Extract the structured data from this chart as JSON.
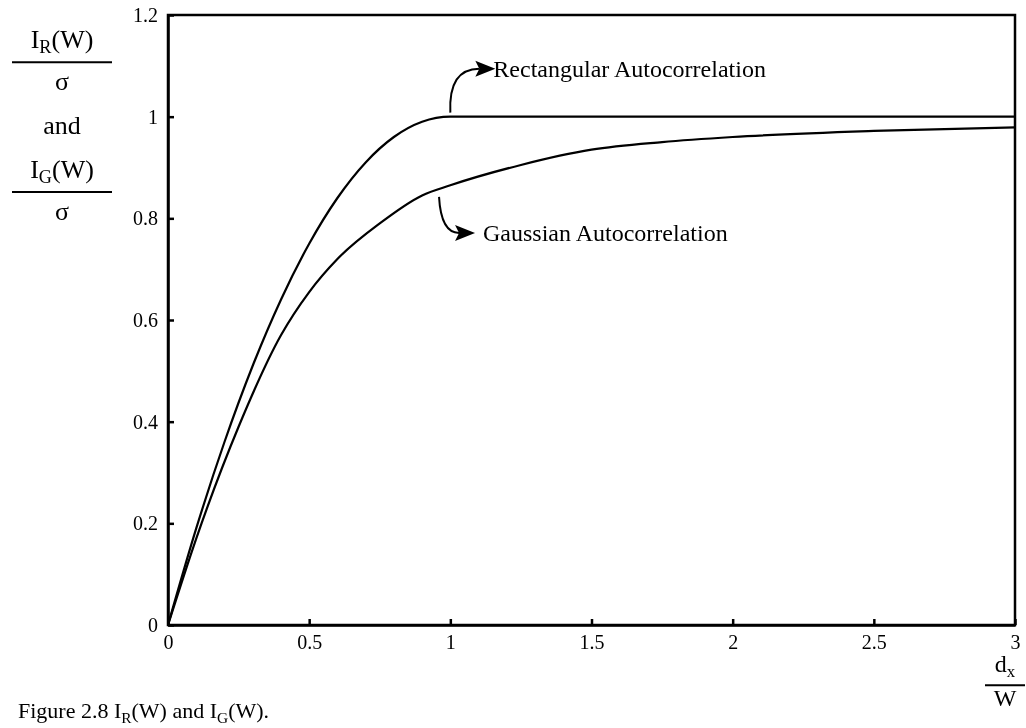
{
  "chart_data": {
    "type": "line",
    "xlabel": "d$_{x}$\nW",
    "ylabel": "I$_{R}$(W)\nσ\nand\nI$_{G}$(W)\nσ",
    "xlim": [
      0,
      3
    ],
    "ylim": [
      0,
      1.2
    ],
    "xticks": [
      0,
      0.5,
      1,
      1.5,
      2,
      2.5,
      3
    ],
    "yticks": [
      0,
      0.2,
      0.4,
      0.6,
      0.8,
      1,
      1.2
    ],
    "series": [
      {
        "color": "#000000",
        "x": [
          0,
          0.1,
          0.2,
          0.3,
          0.4,
          0.5,
          0.6,
          0.7,
          0.8,
          0.9,
          1,
          1.5,
          2,
          2.5,
          3
        ],
        "values": [
          0,
          0.19,
          0.36,
          0.51,
          0.64,
          0.75,
          0.84,
          0.91,
          0.96,
          0.99,
          1,
          1,
          1,
          1,
          1
        ]
      },
      {
        "color": "#000000",
        "x": [
          0,
          0.1,
          0.25,
          0.4,
          0.5,
          0.6,
          0.75,
          0.9,
          1,
          1.25,
          1.5,
          1.75,
          2,
          2.5,
          3
        ],
        "values": [
          0,
          0.17,
          0.39,
          0.57,
          0.655,
          0.72,
          0.79,
          0.845,
          0.865,
          0.905,
          0.935,
          0.95,
          0.96,
          0.972,
          0.979
        ]
      }
    ],
    "annotations": [
      {
        "text": "Rectangular Autocorrelation",
        "x": 1,
        "y": 1
      },
      {
        "text": "Gaussian Autocorrelation",
        "x": 0.96,
        "y": 0.85
      },
      "Figure 2.8    I$_{R}$(W) and I$_{G}$(W)."
    ],
    "marker": "none",
    "line_style": "solid",
    "grid": false
  }
}
